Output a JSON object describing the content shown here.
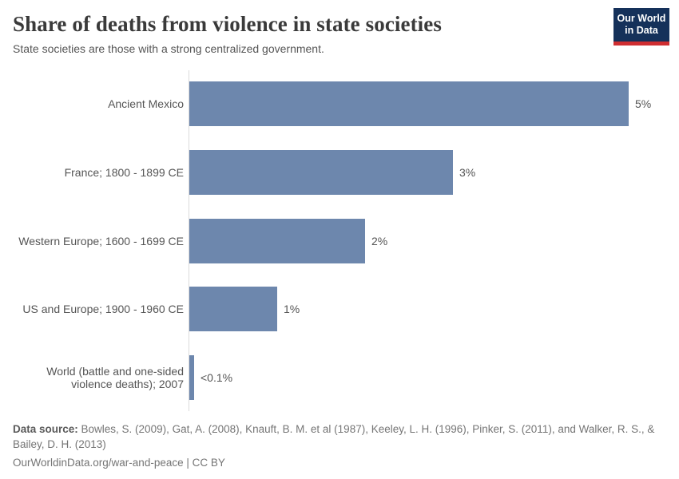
{
  "header": {
    "title": "Share of deaths from violence in state societies",
    "subtitle": "State societies are those with a strong centralized government.",
    "logo": {
      "line1": "Our World",
      "line2": "in Data"
    }
  },
  "chart_data": {
    "type": "bar",
    "orientation": "horizontal",
    "title": "Share of deaths from violence in state societies",
    "subtitle": "State societies are those with a strong centralized government.",
    "categories": [
      "Ancient Mexico",
      "France; 1800 - 1899 CE",
      "Western Europe; 1600 - 1699 CE",
      "US and Europe; 1900 - 1960 CE",
      "World (battle and one-sided violence deaths); 2007"
    ],
    "values": [
      5,
      3,
      2,
      1,
      0.05
    ],
    "value_labels": [
      "5%",
      "3%",
      "2%",
      "1%",
      "<0.1%"
    ],
    "unit": "%",
    "xlim": [
      0,
      5
    ],
    "bar_color": "#6d87ad",
    "axis_color": "#dcdcdc",
    "grid": false,
    "legend": "none"
  },
  "footer": {
    "source_label": "Data source:",
    "source_text": " Bowles, S. (2009), Gat, A. (2008), Knauft, B. M. et al (1987), Keeley, L. H. (1996), Pinker, S. (2011), and Walker, R. S., & Bailey, D. H. (2013)",
    "link_line": "OurWorldinData.org/war-and-peace | CC BY"
  },
  "colors": {
    "logo_bg": "#15315a",
    "logo_accent": "#cf2e31",
    "bar": "#6d87ad"
  }
}
